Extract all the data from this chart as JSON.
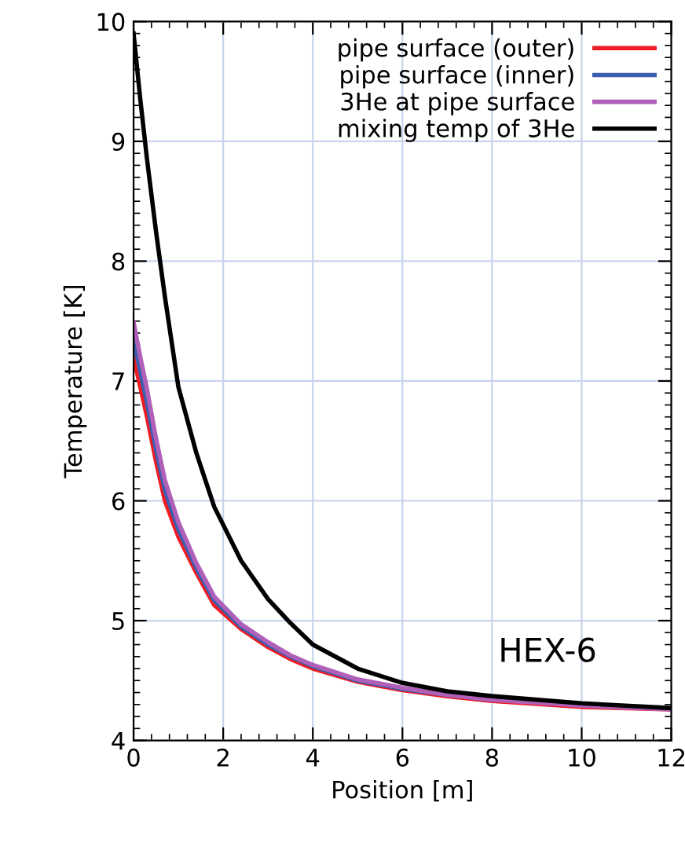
{
  "chart_data": {
    "type": "line",
    "xlabel": "Position [m]",
    "ylabel": "Temperature [K]",
    "xlim": [
      0,
      12
    ],
    "ylim": [
      4,
      10
    ],
    "xticks": [
      0,
      2,
      4,
      6,
      8,
      10,
      12
    ],
    "yticks": [
      4,
      5,
      6,
      7,
      8,
      9,
      10
    ],
    "grid": true,
    "legend": "top right",
    "line_style": "solid",
    "marker": "none",
    "x": [
      0,
      0.15,
      0.3,
      0.5,
      0.7,
      1,
      1.4,
      1.8,
      2.4,
      3,
      3.5,
      4,
      5,
      6,
      7,
      8,
      10,
      12
    ],
    "series": [
      {
        "name": "pipe surface (outer)",
        "color": "#ee1c24",
        "values": [
          7.2,
          6.95,
          6.7,
          6.33,
          6.0,
          5.7,
          5.4,
          5.13,
          4.93,
          4.78,
          4.68,
          4.6,
          4.49,
          4.42,
          4.37,
          4.33,
          4.28,
          4.26
        ]
      },
      {
        "name": "pipe surface (inner)",
        "color": "#3a5fb0",
        "values": [
          7.35,
          7.08,
          6.82,
          6.43,
          6.09,
          5.76,
          5.44,
          5.17,
          4.95,
          4.8,
          4.7,
          4.62,
          4.5,
          4.43,
          4.38,
          4.34,
          null,
          null
        ]
      },
      {
        "name": "3He at pipe surface",
        "color": "#b060b8",
        "values": [
          7.49,
          7.2,
          6.93,
          6.52,
          6.17,
          5.82,
          5.48,
          5.2,
          4.97,
          4.82,
          4.71,
          4.63,
          4.51,
          4.44,
          4.38,
          4.34,
          4.29,
          4.26
        ]
      },
      {
        "name": "mixing temp of 3He",
        "color": "#000000",
        "values": [
          9.9,
          9.35,
          8.85,
          8.25,
          7.7,
          6.95,
          6.4,
          5.95,
          5.5,
          5.18,
          4.98,
          4.8,
          4.6,
          4.48,
          4.41,
          4.37,
          4.31,
          4.27
        ]
      }
    ],
    "annotations": [
      "HEX-6"
    ]
  }
}
